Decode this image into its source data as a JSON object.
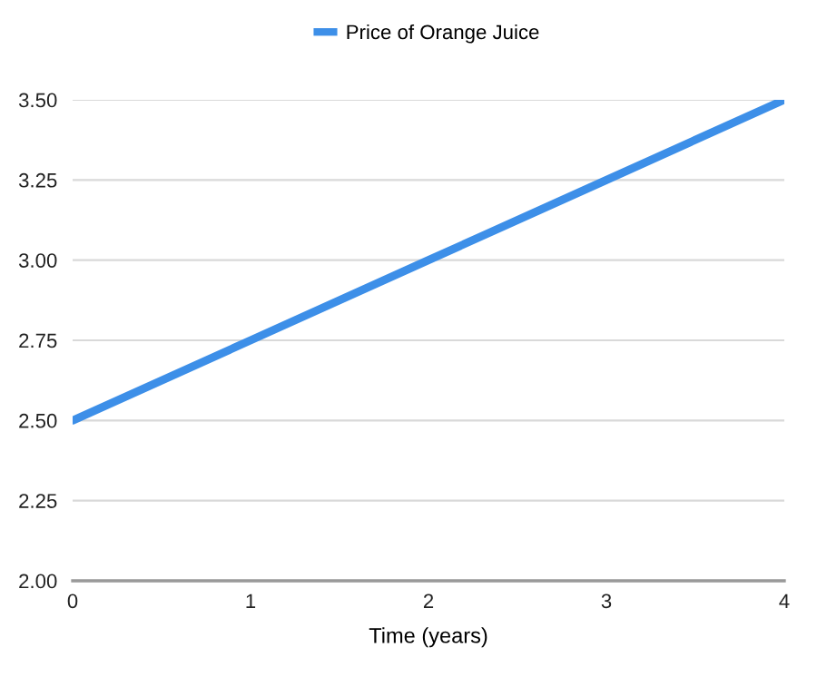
{
  "chart_data": {
    "type": "line",
    "x": [
      0,
      1,
      2,
      3,
      4
    ],
    "series": [
      {
        "name": "Price of Orange Juice",
        "color": "#3d8fe8",
        "values": [
          2.5,
          2.75,
          3.0,
          3.25,
          3.5
        ]
      }
    ],
    "xlabel": "Time (years)",
    "xlim": [
      0,
      4
    ],
    "xticks": [
      0,
      1,
      2,
      3,
      4
    ],
    "ylim": [
      2,
      3.5
    ],
    "yticks": [
      {
        "value": 2,
        "label": "2.00"
      },
      {
        "value": 2.25,
        "label": "2.25"
      },
      {
        "value": 2.5,
        "label": "2.50"
      },
      {
        "value": 2.75,
        "label": "2.75"
      },
      {
        "value": 3,
        "label": "3.00"
      },
      {
        "value": 3.25,
        "label": "3.25"
      },
      {
        "value": 3.5,
        "label": "3.50"
      }
    ],
    "grid": "y",
    "legend": "top",
    "marker": "none",
    "line_style": "solid"
  }
}
